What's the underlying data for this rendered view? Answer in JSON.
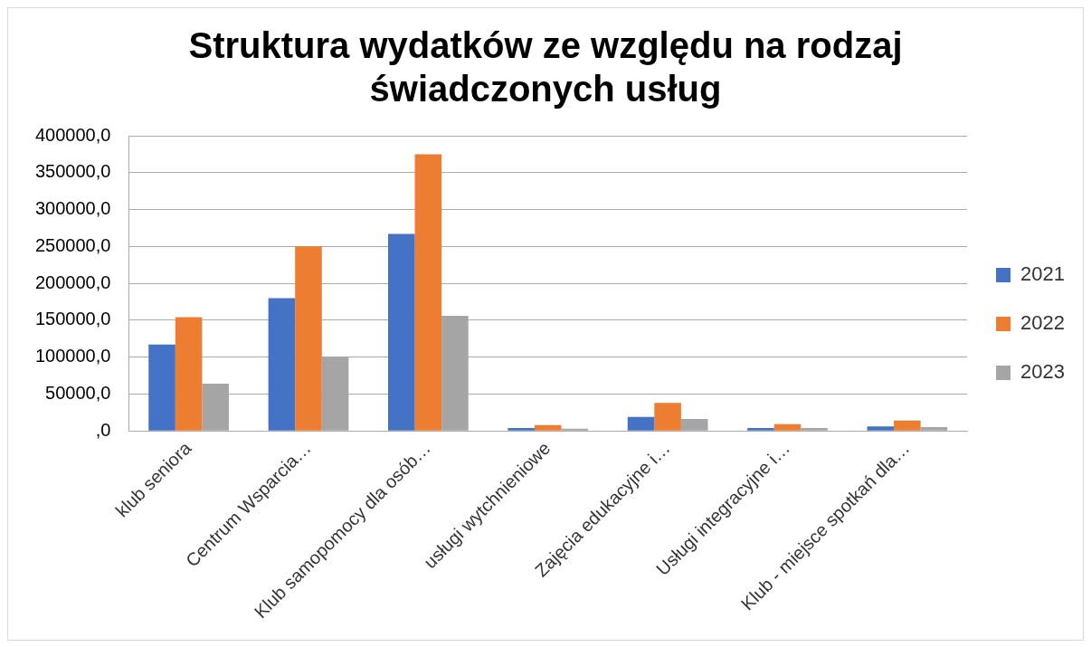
{
  "chart_data": {
    "type": "bar",
    "title": [
      "Struktura wydatków ze względu na rodzaj",
      "świadczonych usług"
    ],
    "categories": [
      "klub seniora",
      "Centrum Wsparcia…",
      "Klub samopomocy dla osób…",
      "usługi wytchnieniowe",
      "Zajęcia edukacyjne i…",
      "Usługi integracyjne i…",
      "Klub - miejsce spotkań dla…"
    ],
    "series": [
      {
        "name": "2021",
        "color": "#4472c4",
        "values": [
          117000,
          180000,
          267000,
          4000,
          19000,
          4000,
          6000
        ]
      },
      {
        "name": "2022",
        "color": "#ed7d31",
        "values": [
          154000,
          250000,
          375000,
          8000,
          38000,
          9000,
          14000
        ]
      },
      {
        "name": "2023",
        "color": "#a5a5a5",
        "values": [
          64000,
          100000,
          156000,
          3000,
          16000,
          4000,
          5000
        ]
      }
    ],
    "ylim": [
      0,
      400000
    ],
    "yticks": [
      {
        "value": 0,
        "label": ",0"
      },
      {
        "value": 50000,
        "label": "50000,0"
      },
      {
        "value": 100000,
        "label": "100000,0"
      },
      {
        "value": 150000,
        "label": "150000,0"
      },
      {
        "value": 200000,
        "label": "200000,0"
      },
      {
        "value": 250000,
        "label": "250000,0"
      },
      {
        "value": 300000,
        "label": "300000,0"
      },
      {
        "value": 350000,
        "label": "350000,0"
      },
      {
        "value": 400000,
        "label": "400000,0"
      }
    ],
    "grid": "y",
    "legend": "right"
  }
}
